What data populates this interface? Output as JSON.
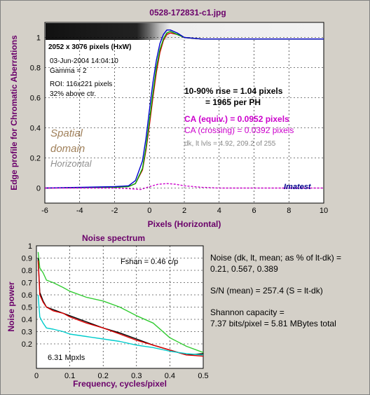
{
  "window_title": "0528-172831-c1.jpg",
  "edge_panel": {
    "info_lines": [
      "2052 x 3076 pixels (HxW)",
      "03-Jun-2004 14:04:10",
      "Gamma = 2",
      "ROI: 116x221 pixels",
      "32% above ctr."
    ],
    "rise_line1": "10-90% rise = 1.04 pixels",
    "rise_line2": "= 1965 per PH",
    "ca_equiv": "CA (equiv.) = 0.0952 pixels",
    "ca_crossing": "CA (crossing) = 0.0392 pixels",
    "dk_lt": "dk, lt lvls = 4.92, 209.2 of 255",
    "spatial": [
      "Spatial",
      "domain"
    ],
    "horizontal": "Horizontal",
    "brand": "Imatest",
    "colors": {
      "spatial": "#a0805a",
      "horizontal": "#909090",
      "ca": "#cc00cc",
      "brand": "#00008b"
    }
  },
  "noise_panel": {
    "title": "Noise spectrum",
    "fshan": "Fshan = 0.46 c/p",
    "mpxls": "6.31 Mpxls"
  },
  "noise_stats": {
    "line1": "Noise (dk, lt, mean; as % of lt-dk) =",
    "line2": "0.21,  0.567,  0.389",
    "line3": "S/N (mean) = 257.4   (S = lt-dk)",
    "line4": "Shannon capacity =",
    "line5": "7.37 bits/pixel = 5.81 MBytes total"
  },
  "chart_data": [
    {
      "type": "line",
      "title": "",
      "xlabel": "Pixels (Horizontal)",
      "ylabel": "Edge profile for Chromatic Aberrations",
      "xlim": [
        -6,
        10
      ],
      "ylim": [
        -0.1,
        1.1
      ],
      "xticks": [
        "-6",
        "-4",
        "-2",
        "0",
        "2",
        "4",
        "6",
        "8",
        "10"
      ],
      "yticks": [
        "0",
        "0.2",
        "0.4",
        "0.6",
        "0.8",
        "1"
      ],
      "grid": true,
      "series": [
        {
          "color": "#dd0000",
          "x": [
            -6,
            -2,
            -1.2,
            -0.8,
            -0.4,
            -0.2,
            0,
            0.2,
            0.4,
            0.6,
            0.8,
            1.0,
            1.2,
            1.6,
            2,
            3,
            4,
            6,
            8,
            10
          ],
          "y": [
            0,
            0.005,
            0.01,
            0.03,
            0.12,
            0.25,
            0.42,
            0.6,
            0.77,
            0.9,
            0.98,
            1.02,
            1.03,
            1.02,
            1.0,
            0.99,
            0.99,
            0.99,
            0.99,
            0.99
          ]
        },
        {
          "color": "#00aa00",
          "x": [
            -6,
            -2,
            -1.2,
            -0.8,
            -0.4,
            -0.2,
            0,
            0.2,
            0.4,
            0.6,
            0.8,
            1.0,
            1.2,
            1.6,
            2,
            3,
            4,
            6,
            8,
            10
          ],
          "y": [
            0,
            0.005,
            0.01,
            0.03,
            0.13,
            0.27,
            0.45,
            0.63,
            0.8,
            0.92,
            0.99,
            1.03,
            1.04,
            1.02,
            1.0,
            0.99,
            0.99,
            0.99,
            0.99,
            0.99
          ]
        },
        {
          "color": "#0000cc",
          "x": [
            -6,
            -2,
            -1.2,
            -0.8,
            -0.4,
            -0.2,
            0,
            0.2,
            0.4,
            0.6,
            0.8,
            1.0,
            1.2,
            1.6,
            2,
            3,
            4,
            6,
            8,
            10
          ],
          "y": [
            0,
            0.01,
            0.015,
            0.05,
            0.18,
            0.33,
            0.52,
            0.7,
            0.85,
            0.96,
            1.02,
            1.05,
            1.05,
            1.03,
            1.0,
            0.99,
            0.99,
            0.99,
            0.99,
            0.99
          ]
        },
        {
          "color": "#cc00cc",
          "dashed": true,
          "x": [
            -6,
            -2,
            -1,
            -0.5,
            0,
            0.5,
            1,
            1.5,
            2,
            3,
            4,
            5,
            6,
            8,
            10
          ],
          "y": [
            0,
            0,
            -0.005,
            -0.01,
            0.01,
            0.025,
            0.03,
            0.025,
            0.015,
            0.005,
            0,
            0,
            0,
            0,
            0
          ]
        }
      ]
    },
    {
      "type": "line",
      "title": "Noise spectrum",
      "xlabel": "Frequency, cycles/pixel",
      "ylabel": "Noise power",
      "xlim": [
        0,
        0.5
      ],
      "ylim": [
        0,
        1
      ],
      "xticks": [
        "0",
        "0.1",
        "0.2",
        "0.3",
        "0.4",
        "0.5"
      ],
      "yticks": [
        "0.2",
        "0.3",
        "0.4",
        "0.5",
        "0.6",
        "0.7",
        "0.8",
        "0.9",
        "1"
      ],
      "grid": true,
      "series": [
        {
          "color": "#33cc33",
          "x": [
            0.005,
            0.01,
            0.02,
            0.03,
            0.05,
            0.08,
            0.1,
            0.15,
            0.2,
            0.25,
            0.3,
            0.35,
            0.4,
            0.45,
            0.5
          ],
          "y": [
            0.95,
            0.82,
            0.78,
            0.72,
            0.7,
            0.66,
            0.63,
            0.58,
            0.55,
            0.5,
            0.43,
            0.37,
            0.25,
            0.18,
            0.13
          ]
        },
        {
          "color": "#000000",
          "x": [
            0.005,
            0.01,
            0.02,
            0.03,
            0.05,
            0.08,
            0.1,
            0.15,
            0.2,
            0.25,
            0.3,
            0.35,
            0.4,
            0.45,
            0.5
          ],
          "y": [
            0.9,
            0.62,
            0.55,
            0.5,
            0.48,
            0.45,
            0.43,
            0.38,
            0.33,
            0.29,
            0.24,
            0.19,
            0.15,
            0.11,
            0.12
          ]
        },
        {
          "color": "#dd0000",
          "x": [
            0.005,
            0.01,
            0.02,
            0.03,
            0.05,
            0.08,
            0.1,
            0.15,
            0.2,
            0.25,
            0.3,
            0.35,
            0.4,
            0.45,
            0.5
          ],
          "y": [
            0.88,
            0.6,
            0.54,
            0.5,
            0.47,
            0.45,
            0.42,
            0.37,
            0.33,
            0.28,
            0.23,
            0.19,
            0.15,
            0.11,
            0.1
          ]
        },
        {
          "color": "#00cccc",
          "x": [
            0.005,
            0.01,
            0.02,
            0.03,
            0.05,
            0.08,
            0.1,
            0.15,
            0.2,
            0.25,
            0.3,
            0.35,
            0.4,
            0.45,
            0.5
          ],
          "y": [
            0.6,
            0.42,
            0.37,
            0.33,
            0.32,
            0.3,
            0.28,
            0.26,
            0.24,
            0.22,
            0.19,
            0.17,
            0.14,
            0.12,
            0.11
          ]
        }
      ]
    }
  ]
}
